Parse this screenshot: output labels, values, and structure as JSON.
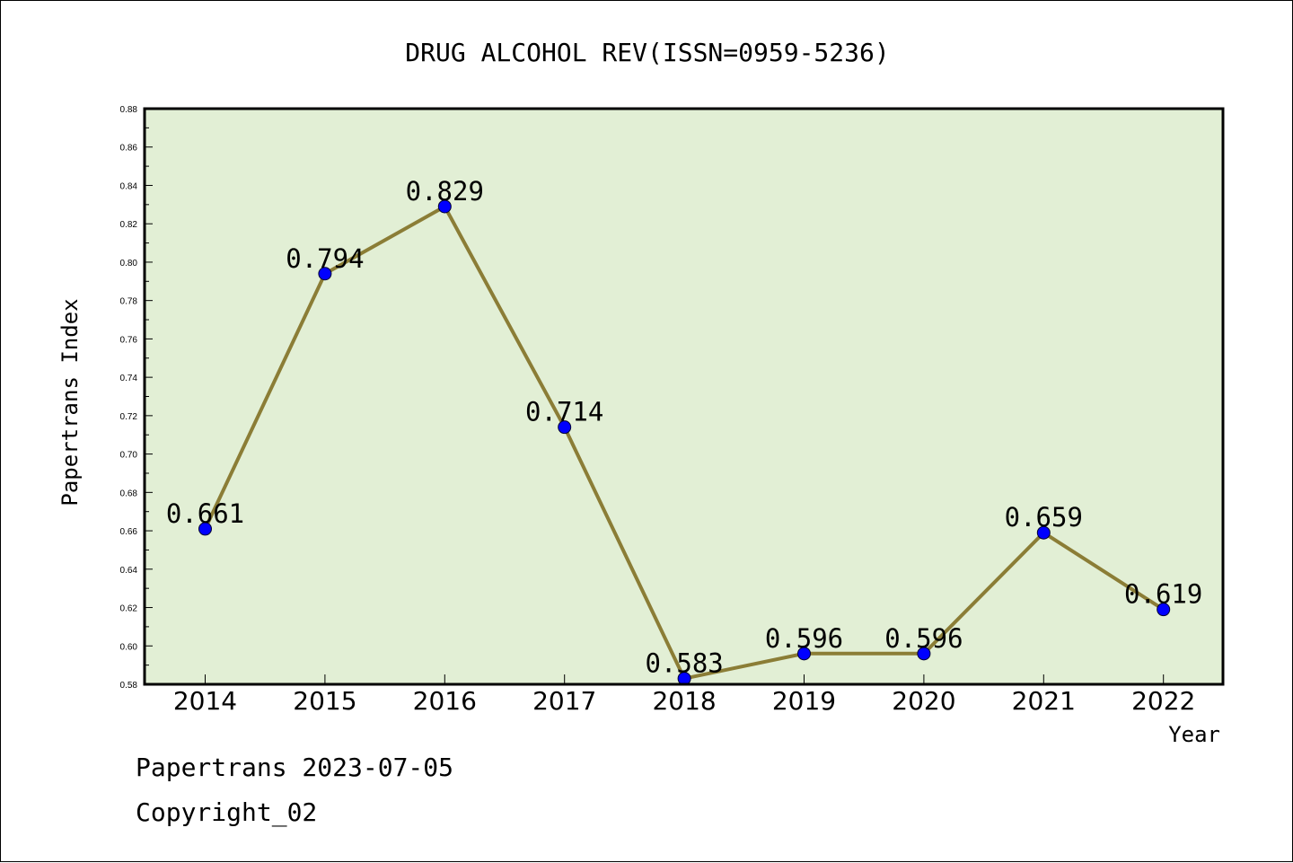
{
  "chart_data": {
    "type": "line",
    "title": "DRUG ALCOHOL REV(ISSN=0959-5236)",
    "xlabel": "Year",
    "ylabel": "Papertrans Index",
    "categories": [
      "2014",
      "2015",
      "2016",
      "2017",
      "2018",
      "2019",
      "2020",
      "2021",
      "2022"
    ],
    "series": [
      {
        "values": [
          0.661,
          0.794,
          0.829,
          0.714,
          0.583,
          0.596,
          0.596,
          0.659,
          0.619
        ]
      }
    ],
    "data_labels": [
      "0.661",
      "0.794",
      "0.829",
      "0.714",
      "0.583",
      "0.596",
      "0.596",
      "0.659",
      "0.619"
    ],
    "ylim": [
      0.58,
      0.88
    ],
    "yticks": [
      "0.58",
      "0.60",
      "0.62",
      "0.64",
      "0.66",
      "0.68",
      "0.70",
      "0.72",
      "0.74",
      "0.76",
      "0.78",
      "0.80",
      "0.82",
      "0.84",
      "0.86",
      "0.88"
    ],
    "grid": false,
    "legend": "none",
    "colors": {
      "plot_background": "#e2efd5",
      "line": "#8b7d36",
      "marker": "#0000ff"
    }
  },
  "footer": {
    "line1": "Papertrans 2023-07-05",
    "line2": "Copyright_02"
  }
}
